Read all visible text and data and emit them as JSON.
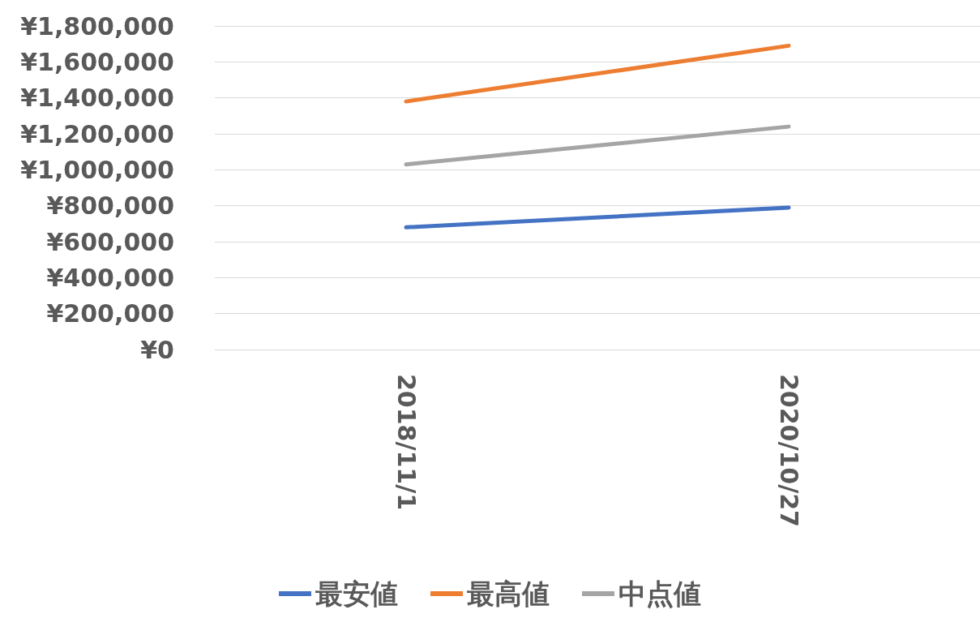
{
  "chart_data": {
    "type": "line",
    "categories": [
      "2018/11/1",
      "2020/10/27"
    ],
    "series": [
      {
        "name": "最安値",
        "color": "#4472c4",
        "values": [
          680000,
          790000
        ]
      },
      {
        "name": "最高値",
        "color": "#ed7d31",
        "values": [
          1380000,
          1690000
        ]
      },
      {
        "name": "中点値",
        "color": "#a5a5a5",
        "values": [
          1030000,
          1240000
        ]
      }
    ],
    "ylim": [
      0,
      1800000
    ],
    "yticks": [
      {
        "value": 0,
        "label": "¥0"
      },
      {
        "value": 200000,
        "label": "¥200,000"
      },
      {
        "value": 400000,
        "label": "¥400,000"
      },
      {
        "value": 600000,
        "label": "¥600,000"
      },
      {
        "value": 800000,
        "label": "¥800,000"
      },
      {
        "value": 1000000,
        "label": "¥1,000,000"
      },
      {
        "value": 1200000,
        "label": "¥1,200,000"
      },
      {
        "value": 1400000,
        "label": "¥1,400,000"
      },
      {
        "value": 1600000,
        "label": "¥1,600,000"
      },
      {
        "value": 1800000,
        "label": "¥1,800,000"
      }
    ],
    "grid": "y",
    "legend": "bottom",
    "marker": "none",
    "line_style": "solid"
  }
}
